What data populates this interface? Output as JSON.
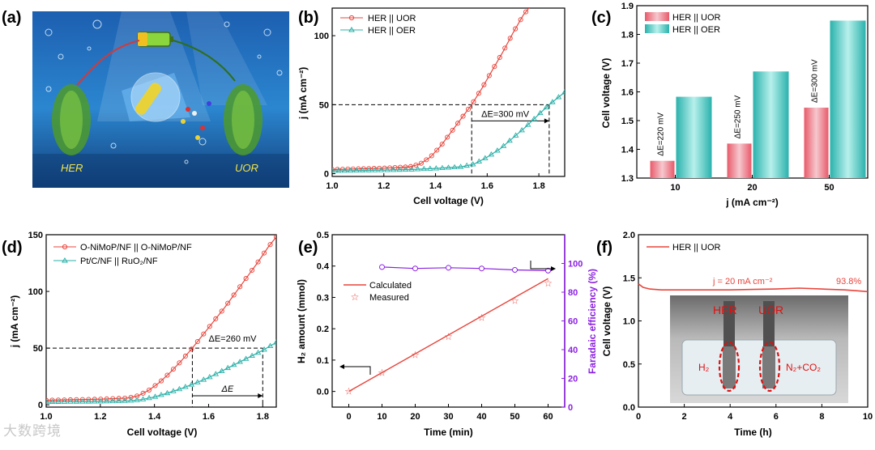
{
  "colors": {
    "red": "#e8453c",
    "teal": "#2ab0a8",
    "purple": "#8b20e0",
    "black": "#000000"
  },
  "watermark": "大数跨境",
  "panel_labels": [
    "(a)",
    "(b)",
    "(c)",
    "(d)",
    "(e)",
    "(f)"
  ],
  "panel_a": {
    "label_left": "HER",
    "label_right": "UOR"
  },
  "chart_data": [
    {
      "id": "b",
      "type": "line",
      "xlabel": "Cell voltage (V)",
      "ylabel": "j (mA cm⁻²)",
      "xlim": [
        1.0,
        1.9
      ],
      "ylim": [
        -2,
        120
      ],
      "xticks": [
        "1.0",
        "1.2",
        "1.4",
        "1.6",
        "1.8"
      ],
      "yticks": [
        "0",
        "50",
        "100"
      ],
      "legend": "top-left",
      "series": [
        {
          "name": "HER || UOR",
          "x": [
            1.0,
            1.1,
            1.2,
            1.3,
            1.34,
            1.38,
            1.42,
            1.46,
            1.5,
            1.54,
            1.58,
            1.62,
            1.66,
            1.7,
            1.74,
            1.77
          ],
          "values": [
            3.0,
            3.5,
            4.0,
            5.0,
            7.0,
            12.0,
            20.0,
            30.0,
            40.0,
            50.0,
            62.0,
            75.0,
            88.0,
            102.0,
            115.0,
            122.0
          ]
        },
        {
          "name": "HER || OER",
          "x": [
            1.0,
            1.1,
            1.2,
            1.3,
            1.4,
            1.5,
            1.55,
            1.6,
            1.65,
            1.7,
            1.75,
            1.8,
            1.84,
            1.88,
            1.9
          ],
          "values": [
            2.0,
            2.3,
            2.6,
            3.0,
            3.8,
            5.0,
            7.0,
            12.0,
            18.0,
            26.0,
            34.0,
            43.0,
            50.0,
            56.0,
            59.0
          ]
        }
      ],
      "annotation": "ΔE=300 mV",
      "guide_j": 50,
      "guide_v": [
        1.54,
        1.84
      ]
    },
    {
      "id": "c",
      "type": "bar",
      "xlabel": "j (mA cm⁻²)",
      "ylabel": "Cell voltage (V)",
      "ylim": [
        1.3,
        1.9
      ],
      "yticks": [
        "1.3",
        "1.4",
        "1.5",
        "1.6",
        "1.7",
        "1.8",
        "1.9"
      ],
      "categories": [
        "10",
        "20",
        "50"
      ],
      "legend": "top-left",
      "series": [
        {
          "name": "HER || UOR",
          "values": [
            1.36,
            1.42,
            1.545
          ]
        },
        {
          "name": "HER || OER",
          "values": [
            1.583,
            1.671,
            1.848
          ]
        }
      ],
      "annotations": [
        "ΔE=220 mV",
        "ΔE=250 mV",
        "ΔE=300 mV"
      ]
    },
    {
      "id": "d",
      "type": "line",
      "xlabel": "Cell voltage (V)",
      "ylabel": "j (mA cm⁻²)",
      "xlim": [
        1.0,
        1.85
      ],
      "ylim": [
        -2,
        150
      ],
      "xticks": [
        "1.0",
        "1.2",
        "1.4",
        "1.6",
        "1.8"
      ],
      "yticks": [
        "0",
        "50",
        "100",
        "150"
      ],
      "legend": "top-left",
      "series": [
        {
          "name": "O-NiMoP/NF || O-NiMoP/NF",
          "x": [
            1.0,
            1.1,
            1.2,
            1.3,
            1.34,
            1.38,
            1.42,
            1.46,
            1.5,
            1.54,
            1.58,
            1.62,
            1.66,
            1.7,
            1.74,
            1.78,
            1.82,
            1.85
          ],
          "values": [
            4.0,
            4.5,
            5.0,
            6.0,
            8.0,
            13.0,
            20.0,
            29.0,
            39.0,
            50.0,
            62.0,
            74.0,
            86.0,
            99.0,
            112.0,
            125.0,
            139.0,
            148.0
          ]
        },
        {
          "name": "Pt/C/NF || RuO₂/NF",
          "x": [
            1.0,
            1.1,
            1.2,
            1.3,
            1.35,
            1.4,
            1.45,
            1.5,
            1.55,
            1.6,
            1.65,
            1.7,
            1.75,
            1.8,
            1.85
          ],
          "values": [
            2.5,
            2.8,
            3.0,
            3.5,
            4.5,
            7.0,
            10.5,
            14.5,
            19.0,
            24.0,
            30.0,
            36.0,
            42.0,
            48.0,
            55.0
          ]
        }
      ],
      "annotation": "ΔE=260 mV",
      "annotation2": "ΔE",
      "guide_j": 50,
      "guide_v": [
        1.54,
        1.8
      ]
    },
    {
      "id": "e",
      "type": "scatter",
      "xlabel": "Time (min)",
      "ylabel": "H₂ amount (mmol)",
      "ylabel_right": "Faradaic efficiency (%)",
      "xlim": [
        -5,
        65
      ],
      "ylim": [
        -0.05,
        0.5
      ],
      "ylim_right": [
        0,
        120
      ],
      "xticks": [
        "0",
        "10",
        "20",
        "30",
        "40",
        "50",
        "60"
      ],
      "yticks": [
        "0.0",
        "0.1",
        "0.2",
        "0.3",
        "0.4",
        "0.5"
      ],
      "yticks_right": [
        "0",
        "20",
        "40",
        "60",
        "80",
        "100"
      ],
      "legend": "center-left",
      "series": [
        {
          "name": "Calculated",
          "x": [
            0,
            60
          ],
          "values": [
            0.0,
            0.36
          ]
        },
        {
          "name": "Measured",
          "x": [
            0,
            10,
            20,
            30,
            40,
            50,
            60
          ],
          "values": [
            0.0,
            0.06,
            0.117,
            0.175,
            0.235,
            0.29,
            0.345
          ]
        },
        {
          "name": "Faradaic efficiency",
          "x": [
            10,
            20,
            30,
            40,
            50,
            60
          ],
          "values": [
            97.5,
            96.5,
            97.0,
            96.5,
            95.5,
            95.0
          ]
        }
      ]
    },
    {
      "id": "f",
      "type": "line",
      "xlabel": "Time (h)",
      "ylabel": "Cell voltage (V)",
      "xlim": [
        0,
        10
      ],
      "ylim": [
        0.0,
        2.0
      ],
      "xticks": [
        "0",
        "2",
        "4",
        "6",
        "8",
        "10"
      ],
      "yticks": [
        "0.0",
        "0.5",
        "1.0",
        "1.5",
        "2.0"
      ],
      "legend": "top-left",
      "series": [
        {
          "name": "HER || UOR",
          "x": [
            0,
            0.2,
            0.5,
            1,
            2,
            3,
            4,
            5,
            6,
            7,
            8,
            9,
            9.5,
            10
          ],
          "values": [
            1.43,
            1.39,
            1.37,
            1.36,
            1.36,
            1.36,
            1.36,
            1.365,
            1.37,
            1.38,
            1.37,
            1.36,
            1.35,
            1.34
          ]
        }
      ],
      "annotation": "j = 20 mA cm⁻²",
      "retention": "93.8%",
      "inset_labels": {
        "her": "HER",
        "uor": "UOR",
        "h2": "H₂",
        "products": "N₂+CO₂"
      }
    }
  ]
}
